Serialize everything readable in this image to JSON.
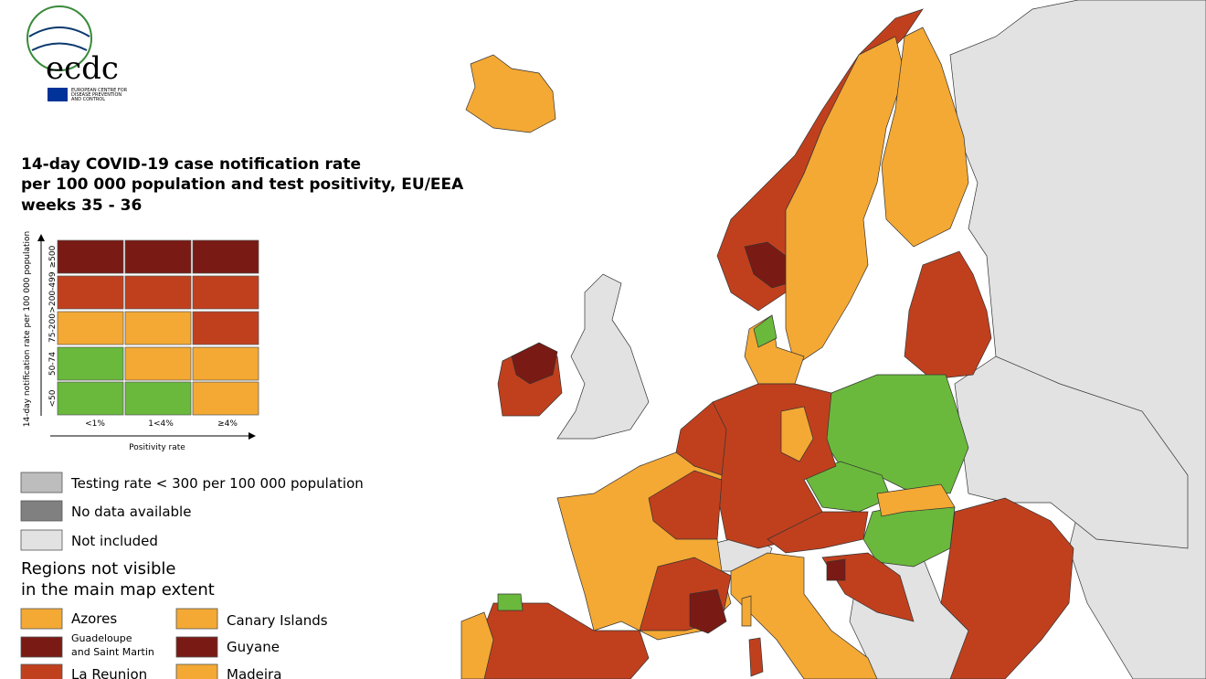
{
  "header": {
    "logo": "ecdc",
    "org": [
      "EUROPEAN CENTRE FOR",
      "DISEASE PREVENTION",
      "AND CONTROL"
    ]
  },
  "title": [
    "14-day COVID-19 case notification rate",
    "per 100 000 population and test positivity, EU/EEA",
    "weeks 35 - 36"
  ],
  "matrix": {
    "y_axis": "14-day notification rate per 100 000 population",
    "rows": [
      "≥500",
      ">200-499",
      "75-200",
      "50-74",
      "<50"
    ],
    "columns": [
      "<1%",
      "1<4%",
      "≥4%"
    ],
    "x_axis": "Positivity rate"
  },
  "legend": [
    "Testing rate < 300 per 100 000 population",
    "No data available",
    "Not included"
  ],
  "regions_heading": [
    "Regions not visible",
    "in the main map extent"
  ],
  "regions": [
    [
      "Azores"
    ],
    [
      "Canary Islands"
    ],
    [
      "Guadeloupe",
      "and Saint Martin"
    ],
    [
      "Guyane"
    ],
    [
      "La Reunion"
    ],
    [
      "Madeira"
    ]
  ]
}
